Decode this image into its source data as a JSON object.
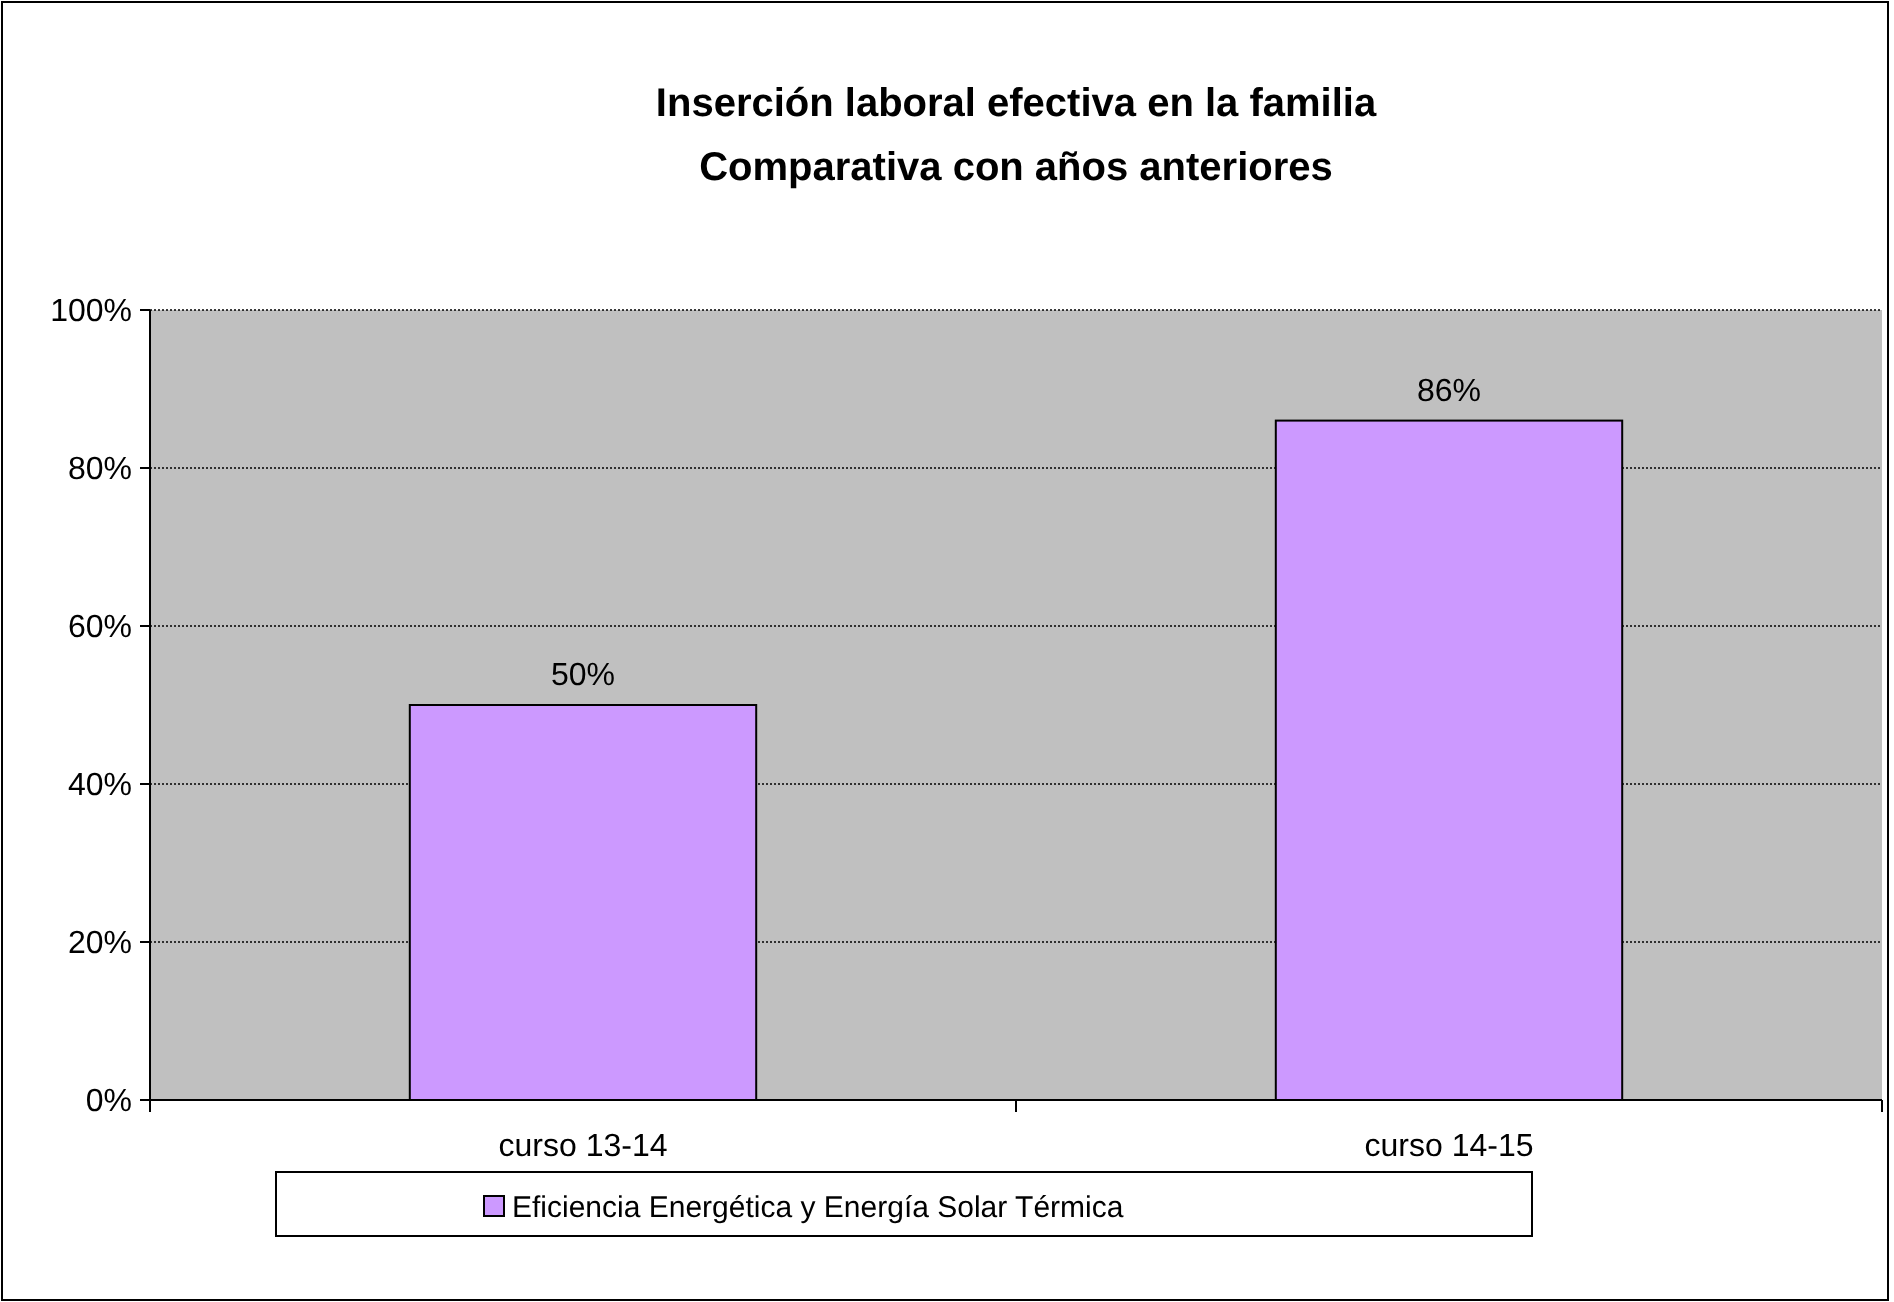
{
  "chart_data": {
    "type": "bar",
    "title": "Inserción laboral efectiva en la familia",
    "subtitle": "Comparativa con años anteriores",
    "categories": [
      "curso 13-14",
      "curso 14-15"
    ],
    "series": [
      {
        "name": "Eficiencia Energética y Energía Solar Térmica",
        "color": "#cc99ff",
        "values": [
          50,
          86
        ],
        "value_labels": [
          "50%",
          "86%"
        ]
      }
    ],
    "ylim": [
      0,
      100
    ],
    "yticks": [
      {
        "value": 0,
        "label": "0%"
      },
      {
        "value": 20,
        "label": "20%"
      },
      {
        "value": 40,
        "label": "40%"
      },
      {
        "value": 60,
        "label": "60%"
      },
      {
        "value": 80,
        "label": "80%"
      },
      {
        "value": 100,
        "label": "100%"
      }
    ],
    "grid": "y",
    "legend": "bottom"
  }
}
